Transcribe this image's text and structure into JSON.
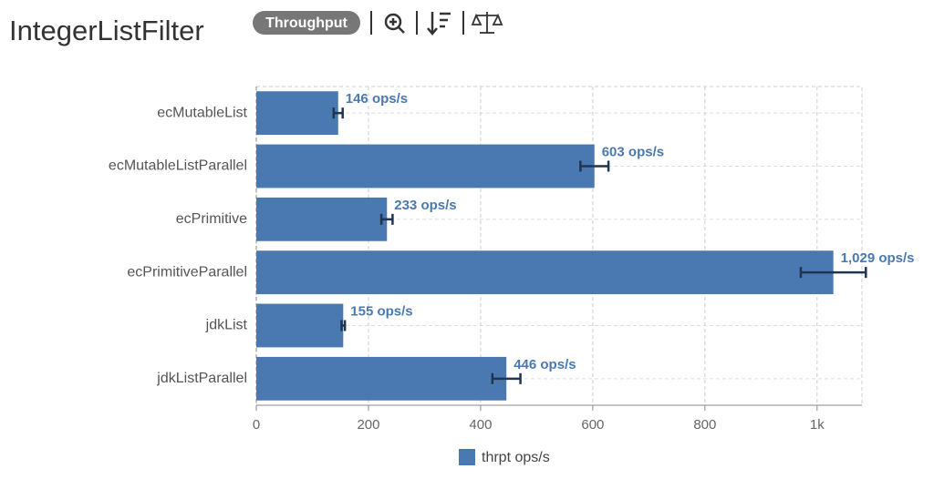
{
  "title": "IntegerListFilter",
  "badge": "Throughput",
  "chart_data": {
    "type": "bar",
    "orientation": "horizontal",
    "categories": [
      "ecMutableList",
      "ecMutableListParallel",
      "ecPrimitive",
      "ecPrimitiveParallel",
      "jdkList",
      "jdkListParallel"
    ],
    "series": [
      {
        "name": "thrpt ops/s",
        "color": "#4a78b0",
        "values": [
          146,
          603,
          233,
          1029,
          155,
          446
        ],
        "errors": [
          8,
          25,
          10,
          58,
          3,
          25
        ],
        "value_labels": [
          "146 ops/s",
          "603 ops/s",
          "233 ops/s",
          "1,029 ops/s",
          "155 ops/s",
          "446 ops/s"
        ]
      }
    ],
    "xlim": [
      0,
      1080
    ],
    "xticks": [
      0,
      200,
      400,
      600,
      800,
      {
        "value": 1000,
        "label": "1k"
      }
    ],
    "grid": true
  }
}
